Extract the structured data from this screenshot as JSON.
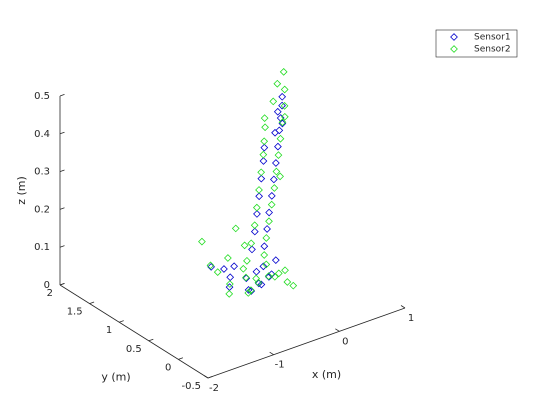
{
  "chart_data": {
    "type": "scatter3d",
    "xlabel": "x (m)",
    "ylabel": "y (m)",
    "zlabel": "z (m)",
    "xlim": [
      -2,
      1
    ],
    "ylim": [
      -0.5,
      2
    ],
    "zlim": [
      0,
      0.5
    ],
    "xticks": [
      -2,
      -1,
      0,
      1
    ],
    "yticks": [
      -0.5,
      0,
      0.5,
      1,
      1.5,
      2
    ],
    "zticks": [
      0,
      0.1,
      0.2,
      0.3,
      0.4,
      0.5
    ],
    "legend": "upper right",
    "series": [
      {
        "name": "Sensor1",
        "color": "#0000cc",
        "x": [
          -0.5,
          -0.4,
          -0.3,
          -0.2,
          -0.1,
          0,
          0.1,
          -0.45,
          -0.35,
          0.05,
          -0.25,
          0.15,
          0.12,
          0.18,
          0.22,
          0.27,
          0.31,
          0.35,
          0.39,
          0.42,
          0.45,
          0.48,
          0.5,
          0.46,
          0.4,
          0.44,
          -0.05,
          0.02,
          0.08,
          0.14,
          0.2,
          0.26,
          0.3,
          -0.6,
          -0.15,
          0.25
        ],
        "y": [
          0.8,
          0.9,
          0.7,
          0.85,
          0.75,
          0.9,
          0.8,
          0.95,
          0.6,
          0.7,
          1.0,
          0.95,
          0.9,
          0.92,
          0.93,
          0.94,
          0.95,
          0.96,
          0.97,
          0.98,
          0.99,
          1.0,
          1.02,
          1.05,
          1.03,
          0.95,
          0.92,
          0.95,
          0.98,
          1.01,
          1.04,
          1.07,
          1.1,
          1.0,
          0.65,
          0.85
        ],
        "z": [
          0.02,
          0.03,
          0.01,
          0.02,
          0.01,
          0.02,
          0.01,
          0.05,
          0.02,
          0.03,
          0.04,
          0.02,
          0.08,
          0.12,
          0.16,
          0.2,
          0.24,
          0.28,
          0.32,
          0.36,
          0.39,
          0.42,
          0.44,
          0.4,
          0.35,
          0.38,
          0.08,
          0.12,
          0.16,
          0.2,
          0.24,
          0.28,
          0.31,
          0.06,
          0.02,
          0.04
        ]
      },
      {
        "name": "Sensor2",
        "color": "#22dd22",
        "x": [
          -0.55,
          -0.45,
          -0.35,
          -0.25,
          -0.15,
          -0.05,
          0.05,
          0.15,
          0.25,
          -0.5,
          -0.3,
          -0.1,
          0.1,
          0.2,
          -0.4,
          0,
          0.3,
          -0.2,
          0.1,
          0.15,
          0.2,
          0.25,
          0.3,
          0.34,
          0.38,
          0.42,
          0.46,
          0.5,
          0.52,
          0.55,
          0.48,
          0.4,
          0.36,
          -0.08,
          0,
          0.06,
          0.12,
          0.18,
          0.24,
          0.28,
          0.33,
          0.35,
          -0.7,
          -0.65,
          0.45,
          0.2,
          0.0
        ],
        "y": [
          0.75,
          0.85,
          0.65,
          0.8,
          0.7,
          0.85,
          0.75,
          0.9,
          0.8,
          1.0,
          1.05,
          0.95,
          0.7,
          0.6,
          0.55,
          1.1,
          0.75,
          0.9,
          0.88,
          0.9,
          0.91,
          0.92,
          0.93,
          0.94,
          0.95,
          0.96,
          0.97,
          0.98,
          1.0,
          1.05,
          1.08,
          1.06,
          0.9,
          0.9,
          0.93,
          0.96,
          0.99,
          1.02,
          1.05,
          1.08,
          1.12,
          1.15,
          0.9,
          1.1,
          0.92,
          0.5,
          1.25
        ],
        "z": [
          0.01,
          0.02,
          0.01,
          0.03,
          0.02,
          0.01,
          0.02,
          0.03,
          0.01,
          0.04,
          0.06,
          0.05,
          0.02,
          0.01,
          0.03,
          0.07,
          0.02,
          0.04,
          0.06,
          0.1,
          0.14,
          0.18,
          0.22,
          0.26,
          0.3,
          0.34,
          0.38,
          0.42,
          0.46,
          0.5,
          0.47,
          0.43,
          0.25,
          0.1,
          0.14,
          0.18,
          0.22,
          0.26,
          0.3,
          0.33,
          0.36,
          0.38,
          0.08,
          0.12,
          0.4,
          0.01,
          0.1
        ]
      }
    ]
  }
}
